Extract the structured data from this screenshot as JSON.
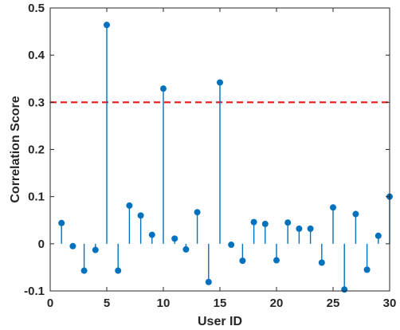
{
  "chart_data": {
    "type": "stem",
    "title": "",
    "xlabel": "User ID",
    "ylabel": "Correlation Score",
    "xlim": [
      0,
      30
    ],
    "ylim": [
      -0.1,
      0.5
    ],
    "xticks": [
      0,
      5,
      10,
      15,
      20,
      25,
      30
    ],
    "yticks": [
      -0.1,
      0,
      0.1,
      0.2,
      0.3,
      0.4,
      0.5
    ],
    "xtick_labels": [
      "0",
      "5",
      "10",
      "15",
      "20",
      "25",
      "30"
    ],
    "ytick_labels": [
      "-0.1",
      "0",
      "0.1",
      "0.2",
      "0.3",
      "0.4",
      "0.5"
    ],
    "grid": false,
    "x": [
      1,
      2,
      3,
      4,
      5,
      6,
      7,
      8,
      9,
      10,
      11,
      12,
      13,
      14,
      15,
      16,
      17,
      18,
      19,
      20,
      21,
      22,
      23,
      24,
      25,
      26,
      27,
      28,
      29,
      30
    ],
    "y": [
      0.044,
      -0.005,
      -0.057,
      -0.013,
      0.464,
      -0.057,
      0.081,
      0.06,
      0.019,
      0.329,
      0.011,
      -0.012,
      0.067,
      -0.081,
      0.342,
      -0.002,
      -0.036,
      0.046,
      0.042,
      -0.035,
      0.045,
      0.032,
      0.032,
      -0.04,
      0.077,
      -0.097,
      0.063,
      -0.055,
      0.017,
      0.1
    ],
    "threshold": 0.3,
    "colors": {
      "stem": "#0072bd",
      "threshold": "#e8191b",
      "axis": "#262626",
      "background": "#ffffff"
    }
  }
}
